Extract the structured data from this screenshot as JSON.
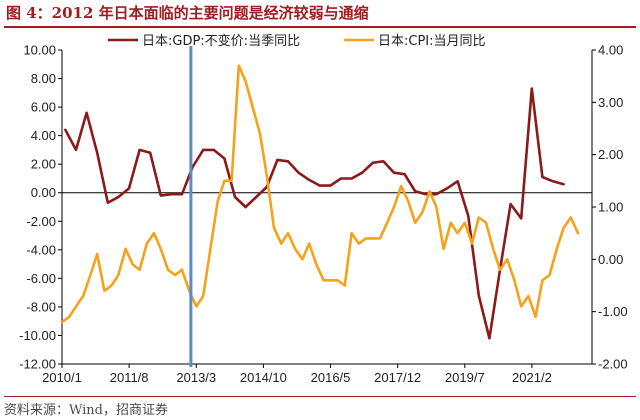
{
  "header": {
    "title": "图 4：2012 年日本面临的主要问题是经济较弱与通缩"
  },
  "footer": {
    "source": "资料来源：Wind，招商证券"
  },
  "colors": {
    "gdp": "#8b1a1a",
    "cpi": "#f5a21b",
    "marker": "#5b8bc9",
    "axis": "#000000",
    "title": "#a01d22"
  },
  "chart_data": {
    "type": "line",
    "title": "",
    "legend": {
      "position": "top",
      "entries": [
        "日本:GDP:不变价:当季同比",
        "日本:CPI:当月同比"
      ]
    },
    "grid": false,
    "x_ticks": [
      "2010/1",
      "2011/8",
      "2013/3",
      "2014/10",
      "2016/5",
      "2017/12",
      "2019/7",
      "2021/2"
    ],
    "x_range": [
      2010.0,
      2022.5
    ],
    "y_left": {
      "range": [
        -12,
        10
      ],
      "ticks": [
        "10.00",
        "8.00",
        "6.00",
        "4.00",
        "2.00",
        "0.00",
        "-2.00",
        "-4.00",
        "-6.00",
        "-8.00",
        "-10.00",
        "-12.00"
      ]
    },
    "y_right": {
      "range": [
        -2,
        4
      ],
      "ticks": [
        "4.00",
        "3.00",
        "2.00",
        "1.00",
        "0.00",
        "-1.00",
        "-2.00"
      ]
    },
    "reference_line": {
      "date": "2013/1",
      "x": 2013.04
    },
    "series": [
      {
        "name": "日本:GDP:不变价:当季同比",
        "axis": "left",
        "x": [
          2010.08,
          2010.33,
          2010.58,
          2010.83,
          2011.08,
          2011.33,
          2011.58,
          2011.83,
          2012.08,
          2012.33,
          2012.58,
          2012.83,
          2013.08,
          2013.33,
          2013.58,
          2013.83,
          2014.08,
          2014.33,
          2014.58,
          2014.83,
          2015.08,
          2015.33,
          2015.58,
          2015.83,
          2016.08,
          2016.33,
          2016.58,
          2016.83,
          2017.08,
          2017.33,
          2017.58,
          2017.83,
          2018.08,
          2018.33,
          2018.58,
          2018.83,
          2019.08,
          2019.33,
          2019.58,
          2019.83,
          2020.08,
          2020.33,
          2020.58,
          2020.83,
          2021.08,
          2021.33,
          2021.58,
          2021.83
        ],
        "values": [
          4.4,
          3.0,
          5.6,
          2.8,
          -0.7,
          -0.3,
          0.3,
          3.0,
          2.8,
          -0.2,
          -0.1,
          -0.1,
          1.8,
          3.0,
          3.0,
          2.4,
          -0.3,
          -1.0,
          -0.3,
          0.4,
          2.3,
          2.2,
          1.4,
          0.9,
          0.5,
          0.5,
          1.0,
          1.0,
          1.4,
          2.1,
          2.2,
          1.4,
          1.3,
          0.1,
          -0.1,
          -0.1,
          0.3,
          0.8,
          -1.6,
          -7.2,
          -10.2,
          -5.4,
          -0.8,
          -1.8,
          7.3,
          1.1,
          0.8,
          0.6
        ]
      },
      {
        "name": "日本:CPI:当月同比",
        "axis": "right",
        "x": [
          2010.0,
          2010.17,
          2010.33,
          2010.5,
          2010.67,
          2010.83,
          2011.0,
          2011.17,
          2011.33,
          2011.5,
          2011.67,
          2011.83,
          2012.0,
          2012.17,
          2012.33,
          2012.5,
          2012.67,
          2012.83,
          2013.0,
          2013.17,
          2013.33,
          2013.5,
          2013.67,
          2013.83,
          2014.0,
          2014.17,
          2014.33,
          2014.5,
          2014.67,
          2014.83,
          2015.0,
          2015.17,
          2015.33,
          2015.5,
          2015.67,
          2015.83,
          2016.0,
          2016.17,
          2016.33,
          2016.5,
          2016.67,
          2016.83,
          2017.0,
          2017.17,
          2017.33,
          2017.5,
          2017.67,
          2017.83,
          2018.0,
          2018.17,
          2018.33,
          2018.5,
          2018.67,
          2018.83,
          2019.0,
          2019.17,
          2019.33,
          2019.5,
          2019.67,
          2019.83,
          2020.0,
          2020.17,
          2020.33,
          2020.5,
          2020.67,
          2020.83,
          2021.0,
          2021.17,
          2021.33,
          2021.5,
          2021.67,
          2021.83,
          2022.0,
          2022.17
        ],
        "values": [
          -1.2,
          -1.1,
          -0.9,
          -0.7,
          -0.3,
          0.1,
          -0.6,
          -0.5,
          -0.3,
          0.2,
          -0.1,
          -0.2,
          0.3,
          0.5,
          0.2,
          -0.2,
          -0.3,
          -0.2,
          -0.6,
          -0.9,
          -0.7,
          0.2,
          1.1,
          1.5,
          1.5,
          3.7,
          3.4,
          2.9,
          2.4,
          1.6,
          0.6,
          0.3,
          0.5,
          0.2,
          0.0,
          0.3,
          -0.1,
          -0.4,
          -0.4,
          -0.4,
          -0.5,
          0.5,
          0.3,
          0.4,
          0.4,
          0.4,
          0.7,
          1.0,
          1.4,
          1.1,
          0.7,
          0.9,
          1.3,
          1.0,
          0.2,
          0.7,
          0.5,
          0.7,
          0.3,
          0.8,
          0.7,
          0.2,
          -0.2,
          0.0,
          -0.4,
          -0.9,
          -0.7,
          -1.1,
          -0.4,
          -0.3,
          0.2,
          0.6,
          0.8,
          0.5
        ]
      }
    ]
  }
}
